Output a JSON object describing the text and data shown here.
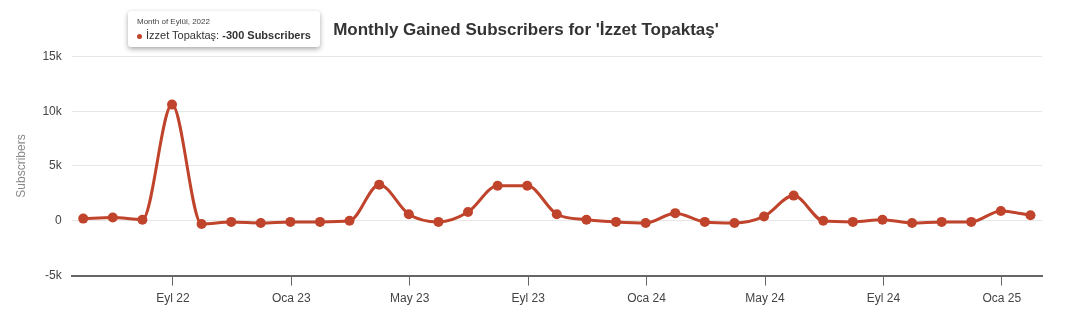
{
  "chart_data": {
    "type": "line",
    "title": "Monthly Gained Subscribers for 'İzzet Topaktaş'",
    "ylabel": "Subscribers",
    "x": [
      "2022-05-31",
      "2022-06-30",
      "2022-07-31",
      "2022-08-31",
      "2022-09-30",
      "2022-10-31",
      "2022-11-30",
      "2022-12-31",
      "2023-01-31",
      "2023-02-28",
      "2023-03-31",
      "2023-04-30",
      "2023-05-31",
      "2023-06-30",
      "2023-07-31",
      "2023-08-31",
      "2023-09-30",
      "2023-10-31",
      "2023-11-30",
      "2023-12-31",
      "2024-01-31",
      "2024-02-29",
      "2024-03-31",
      "2024-04-30",
      "2024-05-31",
      "2024-06-30",
      "2024-07-31",
      "2024-08-31",
      "2024-09-30",
      "2024-10-31",
      "2024-11-30",
      "2024-12-31",
      "2025-01-31"
    ],
    "series": [
      {
        "color": "#c0432b",
        "values": [
          200,
          300,
          100,
          10600,
          -300,
          -100,
          -200,
          -100,
          -100,
          0,
          3300,
          600,
          -100,
          800,
          3200,
          3200,
          600,
          100,
          -100,
          -200,
          700,
          -100,
          -200,
          400,
          2300,
          0,
          -100,
          100,
          -200,
          -100,
          -100,
          900,
          500
        ]
      }
    ],
    "xlim": [
      "2022-05-19",
      "2025-02-11"
    ],
    "xticks": [
      {
        "value": "2022-09-01",
        "label": "Eyl 22"
      },
      {
        "value": "2023-01-01",
        "label": "Oca 23"
      },
      {
        "value": "2023-05-01",
        "label": "May 23"
      },
      {
        "value": "2023-09-01",
        "label": "Eyl 23"
      },
      {
        "value": "2024-01-01",
        "label": "Oca 24"
      },
      {
        "value": "2024-05-01",
        "label": "May 24"
      },
      {
        "value": "2024-09-01",
        "label": "Eyl 24"
      },
      {
        "value": "2025-01-01",
        "label": "Oca 25"
      }
    ],
    "ylim": [
      -5000,
      15000
    ],
    "yticks": [
      {
        "value": -5000,
        "label": "-5k"
      },
      {
        "value": 0,
        "label": "0"
      },
      {
        "value": 5000,
        "label": "5k"
      },
      {
        "value": 10000,
        "label": "10k"
      },
      {
        "value": 15000,
        "label": "15k"
      }
    ],
    "grid": "y",
    "legend": false,
    "marker": "circle",
    "line_style": "solid",
    "annotations": [
      "Month of Eylül, 2022",
      "İzzet Topaktaş: -300 Subscribers"
    ]
  }
}
